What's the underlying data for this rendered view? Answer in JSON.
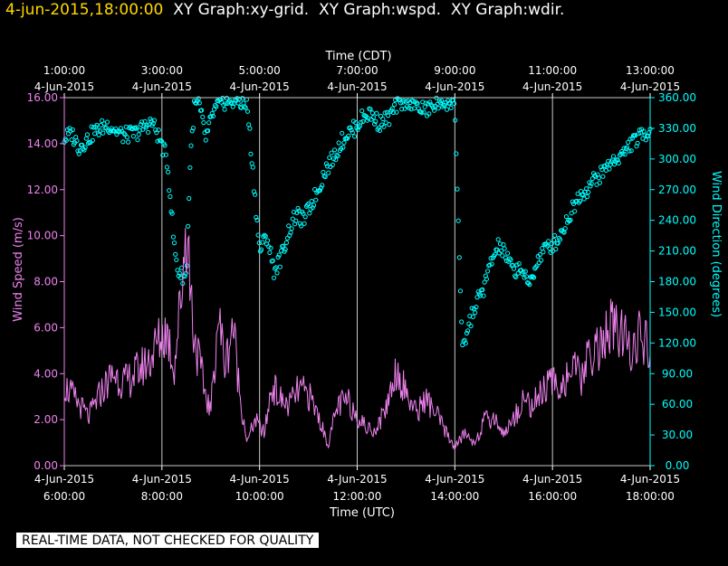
{
  "header": {
    "timestamp": "4-jun-2015,18:00:00",
    "titles": [
      "XY Graph:xy-grid.",
      "XY Graph:wspd.",
      "XY Graph:wdir."
    ]
  },
  "footer": {
    "qc_banner": "REAL-TIME DATA, NOT CHECKED FOR QUALITY"
  },
  "colors": {
    "background": "#000000",
    "grid": "#c8c8c8",
    "speed": "#ee82ee",
    "direction": "#00ffff",
    "header_timestamp": "#ffd700"
  },
  "chart_data": {
    "type": "line",
    "top_axis": {
      "title": "Time (CDT)",
      "ticks": [
        {
          "time": "1:00:00",
          "date": "4-Jun-2015"
        },
        {
          "time": "3:00:00",
          "date": "4-Jun-2015"
        },
        {
          "time": "5:00:00",
          "date": "4-Jun-2015"
        },
        {
          "time": "7:00:00",
          "date": "4-Jun-2015"
        },
        {
          "time": "9:00:00",
          "date": "4-Jun-2015"
        },
        {
          "time": "11:00:00",
          "date": "4-Jun-2015"
        },
        {
          "time": "13:00:00",
          "date": "4-Jun-2015"
        }
      ]
    },
    "bottom_axis": {
      "title": "Time (UTC)",
      "ticks": [
        {
          "date": "4-Jun-2015",
          "time": "6:00:00"
        },
        {
          "date": "4-Jun-2015",
          "time": "8:00:00"
        },
        {
          "date": "4-Jun-2015",
          "time": "10:00:00"
        },
        {
          "date": "4-Jun-2015",
          "time": "12:00:00"
        },
        {
          "date": "4-Jun-2015",
          "time": "14:00:00"
        },
        {
          "date": "4-Jun-2015",
          "time": "16:00:00"
        },
        {
          "date": "4-Jun-2015",
          "time": "18:00:00"
        }
      ]
    },
    "x_range_utc_hours": [
      6,
      18
    ],
    "left_axis": {
      "label": "Wind Speed (m/s)",
      "ylim": [
        0,
        16
      ],
      "ticks": [
        "0.00",
        "2.00",
        "4.00",
        "6.00",
        "8.00",
        "10.00",
        "12.00",
        "14.00",
        "16.00"
      ]
    },
    "right_axis": {
      "label": "Wind Direction (degrees)",
      "ylim": [
        0,
        360
      ],
      "ticks": [
        "0.00",
        "30.00",
        "60.00",
        "90.00",
        "120.00",
        "150.00",
        "180.00",
        "210.00",
        "240.00",
        "270.00",
        "300.00",
        "330.00",
        "360.00"
      ]
    },
    "grid": "vertical lines at labeled UTC ticks",
    "series": [
      {
        "axis": "left",
        "style": "line",
        "x": [
          6.0,
          6.25,
          6.5,
          6.75,
          7.0,
          7.25,
          7.5,
          7.75,
          7.9,
          8.1,
          8.25,
          8.4,
          8.5,
          8.65,
          8.85,
          9.0,
          9.15,
          9.3,
          9.45,
          9.6,
          9.75,
          9.9,
          10.1,
          10.25,
          10.45,
          10.6,
          10.8,
          11.0,
          11.2,
          11.4,
          11.6,
          11.8,
          12.0,
          12.2,
          12.4,
          12.6,
          12.8,
          13.0,
          13.2,
          13.4,
          13.6,
          13.8,
          14.0,
          14.2,
          14.4,
          14.6,
          14.8,
          15.0,
          15.2,
          15.4,
          15.6,
          15.8,
          16.0,
          16.2,
          16.4,
          16.6,
          16.8,
          17.0,
          17.2,
          17.4,
          17.6,
          17.8,
          18.0
        ],
        "y": [
          3.5,
          2.8,
          2.1,
          3.2,
          4.0,
          3.6,
          4.1,
          4.6,
          5.3,
          5.9,
          4.2,
          7.6,
          10.6,
          5.8,
          3.5,
          2.3,
          6.6,
          4.3,
          6.3,
          3.0,
          1.0,
          2.0,
          1.4,
          3.5,
          2.8,
          2.6,
          3.3,
          3.1,
          2.2,
          0.9,
          2.6,
          2.8,
          2.2,
          1.6,
          1.6,
          2.6,
          4.2,
          3.2,
          2.3,
          2.9,
          2.3,
          1.5,
          0.8,
          1.4,
          1.0,
          1.9,
          2.1,
          1.4,
          2.0,
          2.9,
          2.6,
          3.3,
          3.6,
          3.5,
          4.2,
          3.8,
          5.0,
          5.2,
          6.0,
          5.6,
          5.2,
          5.6,
          4.8
        ]
      },
      {
        "axis": "right",
        "style": "dots",
        "x": [
          6.0,
          6.15,
          6.3,
          6.45,
          6.6,
          6.75,
          6.9,
          7.05,
          7.2,
          7.35,
          7.5,
          7.65,
          7.8,
          7.95,
          8.1,
          8.18,
          8.25,
          8.33,
          8.42,
          8.5,
          8.58,
          8.66,
          8.75,
          8.9,
          9.05,
          9.2,
          9.35,
          9.45,
          9.55,
          9.65,
          9.75,
          10.0,
          10.15,
          10.3,
          10.45,
          10.6,
          10.75,
          10.9,
          11.05,
          11.2,
          11.35,
          11.5,
          11.65,
          11.8,
          11.95,
          12.1,
          12.25,
          12.45,
          12.65,
          12.85,
          13.05,
          13.25,
          13.45,
          13.65,
          13.85,
          14.0,
          14.15,
          14.3,
          14.45,
          14.6,
          14.75,
          14.9,
          15.05,
          15.2,
          15.35,
          15.5,
          15.65,
          15.8,
          15.95,
          16.1,
          16.25,
          16.4,
          16.55,
          16.7,
          16.85,
          17.0,
          17.15,
          17.3,
          17.45,
          17.6,
          17.75,
          17.9,
          18.0
        ],
        "y": [
          320,
          325,
          312,
          318,
          326,
          330,
          334,
          328,
          323,
          324,
          326,
          332,
          336,
          320,
          300,
          260,
          215,
          190,
          186,
          185,
          300,
          350,
          355,
          320,
          345,
          355,
          357,
          356,
          358,
          354,
          352,
          210,
          225,
          190,
          205,
          230,
          245,
          240,
          255,
          270,
          290,
          300,
          315,
          325,
          330,
          340,
          345,
          335,
          340,
          355,
          358,
          350,
          348,
          355,
          356,
          355,
          110,
          140,
          160,
          175,
          200,
          215,
          205,
          190,
          195,
          175,
          195,
          210,
          215,
          220,
          235,
          250,
          265,
          270,
          280,
          285,
          295,
          300,
          305,
          315,
          320,
          325,
          330
        ]
      }
    ]
  }
}
